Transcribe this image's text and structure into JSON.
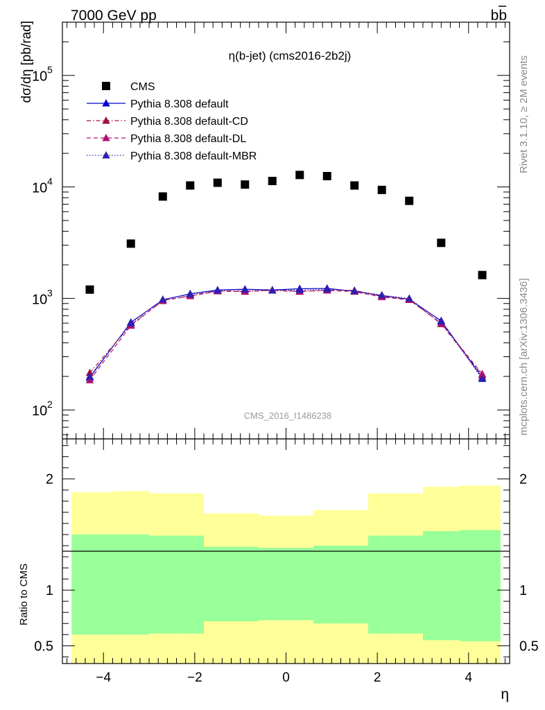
{
  "header": {
    "energy_label": "7000 GeV pp",
    "process_label": "b",
    "process_label_bar": "b"
  },
  "side_labels": {
    "rivet": "Rivet 3.1.10, ≥ 2M events",
    "mcplots": "mcplots.cern.ch [arXiv:1306.3436]"
  },
  "chart_data": [
    {
      "type": "scatter",
      "title": "η(b-jet) (cms2016-2b2j)",
      "watermark": "CMS_2016_I1486238",
      "xlabel": "η",
      "ylabel": "dσ/dη [pb/rad]",
      "xlim": [
        -4.9,
        4.9
      ],
      "ylim": [
        55,
        300000
      ],
      "yscale": "log",
      "yticks": [
        {
          "value": 100,
          "label": "10",
          "exp": "2"
        },
        {
          "value": 1000,
          "label": "10",
          "exp": "3"
        },
        {
          "value": 10000,
          "label": "10",
          "exp": "4"
        },
        {
          "value": 100000,
          "label": "10",
          "exp": "5"
        }
      ],
      "legend_position": "top-left",
      "x": [
        -4.3,
        -3.4,
        -2.7,
        -2.1,
        -1.5,
        -0.9,
        -0.3,
        0.3,
        0.9,
        1.5,
        2.1,
        2.7,
        3.4,
        4.3
      ],
      "series": [
        {
          "name": "CMS",
          "color": "#000000",
          "marker": "square",
          "line": "none",
          "values": [
            1200,
            3100,
            8200,
            10300,
            10900,
            10500,
            11300,
            12800,
            12500,
            10300,
            9400,
            7500,
            3150,
            1620
          ]
        },
        {
          "name": "Pythia 8.308 default",
          "color": "#0000cc",
          "marker": "triangle",
          "line": "solid",
          "values": [
            195,
            610,
            970,
            1100,
            1190,
            1210,
            1190,
            1220,
            1230,
            1160,
            1060,
            980,
            630,
            195
          ]
        },
        {
          "name": "Pythia 8.308 default-CD",
          "color": "#a0103c",
          "marker": "triangle",
          "line": "dashdot",
          "values": [
            215,
            580,
            950,
            1060,
            1170,
            1160,
            1180,
            1150,
            1190,
            1180,
            1040,
            990,
            590,
            205
          ]
        },
        {
          "name": "Pythia 8.308 default-DL",
          "color": "#b01070",
          "marker": "triangle",
          "line": "dashed",
          "values": [
            185,
            570,
            960,
            1050,
            1160,
            1150,
            1190,
            1160,
            1180,
            1150,
            1030,
            970,
            600,
            210
          ]
        },
        {
          "name": "Pythia 8.308 default-MBR",
          "color": "#3020b0",
          "marker": "triangle",
          "line": "dotted",
          "values": [
            200,
            600,
            980,
            1090,
            1180,
            1200,
            1180,
            1190,
            1210,
            1170,
            1070,
            1000,
            620,
            190
          ]
        }
      ]
    },
    {
      "type": "area",
      "ylabel": "Ratio to CMS",
      "xlabel": "η",
      "xlim": [
        -4.9,
        4.9
      ],
      "ylim": [
        0.34,
        2.36
      ],
      "yticks": [
        0.5,
        1,
        2
      ],
      "xticks": [
        -4,
        -2,
        0,
        2,
        4
      ],
      "reference_line": 1,
      "bins": [
        -4.7,
        -3.8,
        -3.0,
        -2.4,
        -1.8,
        -1.2,
        -0.6,
        0.0,
        0.6,
        1.2,
        1.8,
        2.4,
        3.0,
        3.8,
        4.7
      ],
      "band_inner": {
        "color": "#99ff99",
        "low": [
          0.6,
          0.6,
          0.61,
          0.61,
          0.72,
          0.72,
          0.73,
          0.73,
          0.7,
          0.7,
          0.61,
          0.61,
          0.55,
          0.54
        ],
        "high": [
          1.5,
          1.5,
          1.49,
          1.49,
          1.39,
          1.39,
          1.38,
          1.38,
          1.4,
          1.4,
          1.49,
          1.49,
          1.53,
          1.54
        ]
      },
      "band_outer": {
        "color": "#ffff99",
        "low": [
          0.34,
          0.34,
          0.34,
          0.34,
          0.34,
          0.34,
          0.34,
          0.34,
          0.34,
          0.34,
          0.34,
          0.34,
          0.34,
          0.34
        ],
        "high": [
          1.88,
          1.89,
          1.87,
          1.87,
          1.69,
          1.69,
          1.67,
          1.67,
          1.72,
          1.72,
          1.87,
          1.87,
          1.93,
          1.94
        ]
      }
    }
  ]
}
